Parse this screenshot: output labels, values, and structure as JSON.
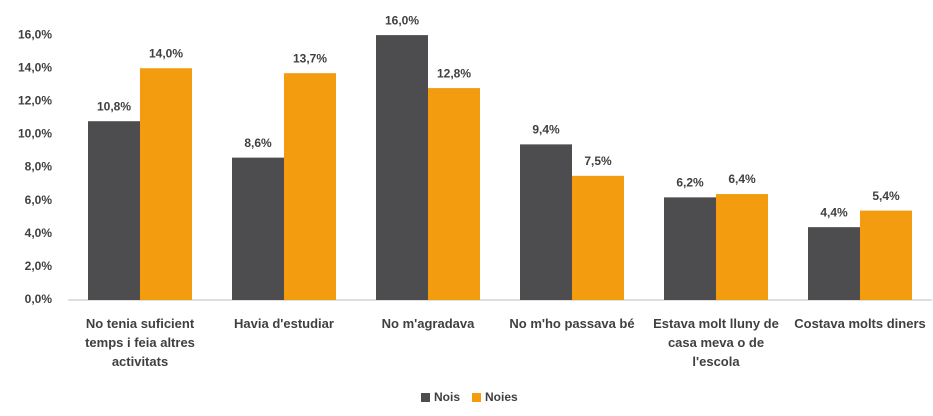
{
  "chart_data": {
    "type": "bar",
    "categories": [
      "No tenia suficient temps i feia altres activitats",
      "Havia d'estudiar",
      "No m'agradava",
      "No m'ho passava bé",
      "Estava molt lluny de casa meva o de l'escola",
      "Costava molts diners"
    ],
    "series": [
      {
        "name": "Nois",
        "color": "#4d4d4f",
        "values": [
          10.8,
          8.6,
          16.0,
          9.4,
          6.2,
          4.4
        ],
        "value_labels": [
          "10,8%",
          "8,6%",
          "16,0%",
          "9,4%",
          "6,2%",
          "4,4%"
        ]
      },
      {
        "name": "Noies",
        "color": "#f39c0f",
        "values": [
          14.0,
          13.7,
          12.8,
          7.5,
          6.4,
          5.4
        ],
        "value_labels": [
          "14,0%",
          "13,7%",
          "12,8%",
          "7,5%",
          "6,4%",
          "5,4%"
        ]
      }
    ],
    "ylim": [
      0,
      18
    ],
    "yticks": [
      {
        "value": 0,
        "label": "0,0%"
      },
      {
        "value": 2,
        "label": "2,0%"
      },
      {
        "value": 4,
        "label": "4,0%"
      },
      {
        "value": 6,
        "label": "6,0%"
      },
      {
        "value": 8,
        "label": "8,0%"
      },
      {
        "value": 10,
        "label": "10,0%"
      },
      {
        "value": 12,
        "label": "12,0%"
      },
      {
        "value": 14,
        "label": "14,0%"
      },
      {
        "value": 16,
        "label": "16,0%"
      }
    ],
    "legend": "bottom"
  }
}
